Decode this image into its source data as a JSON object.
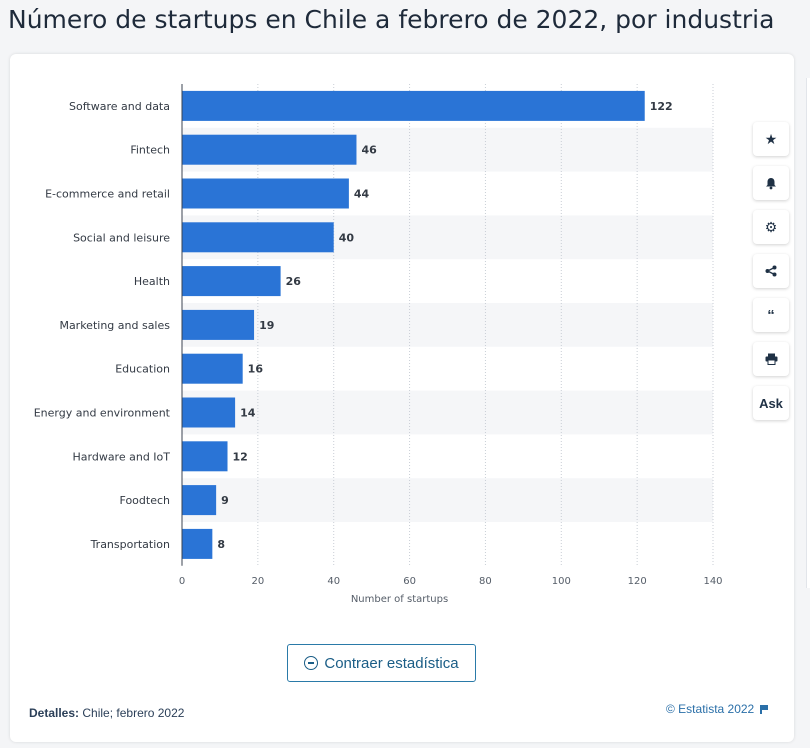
{
  "page": {
    "title": "Número de startups en Chile a febrero de 2022, por industria"
  },
  "toolbar": {
    "buttons": [
      {
        "icon": "star-icon",
        "glyph": "★"
      },
      {
        "icon": "bell-icon",
        "glyph": "🔔"
      },
      {
        "icon": "gear-icon",
        "glyph": "⚙"
      },
      {
        "icon": "share-icon",
        "glyph": "⋖"
      },
      {
        "icon": "quote-icon",
        "glyph": "❝"
      },
      {
        "icon": "print-icon",
        "glyph": "⎙"
      }
    ],
    "ask_label": "Ask"
  },
  "collapse_button": {
    "label": "Contraer estadística"
  },
  "footer": {
    "details_label": "Detalles:",
    "details_value": "Chile; febrero 2022",
    "copyright": "© Estatista 2022"
  },
  "colors": {
    "bar": "#2a74d6",
    "band": "#f5f6f8",
    "grid": "#c9ced6"
  },
  "chart_data": {
    "type": "bar",
    "orientation": "horizontal",
    "categories": [
      "Software and data",
      "Fintech",
      "E-commerce and retail",
      "Social and leisure",
      "Health",
      "Marketing and sales",
      "Education",
      "Energy and environment",
      "Hardware and IoT",
      "Foodtech",
      "Transportation"
    ],
    "values": [
      122,
      46,
      44,
      40,
      26,
      19,
      16,
      14,
      12,
      9,
      8
    ],
    "xlabel": "Number of startups",
    "ylabel": "",
    "xlim": [
      0,
      140
    ],
    "xticks": [
      0,
      20,
      40,
      60,
      80,
      100,
      120,
      140
    ],
    "grid": true,
    "data_labels": true
  }
}
